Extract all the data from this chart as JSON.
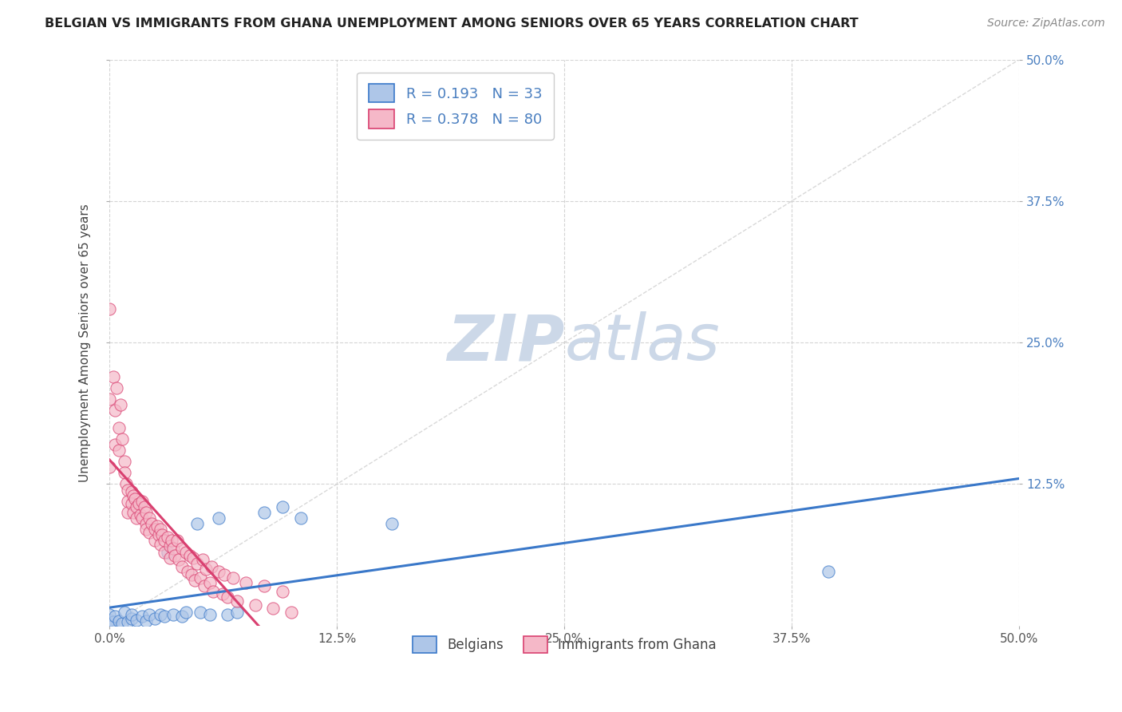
{
  "title": "BELGIAN VS IMMIGRANTS FROM GHANA UNEMPLOYMENT AMONG SENIORS OVER 65 YEARS CORRELATION CHART",
  "source": "Source: ZipAtlas.com",
  "ylabel": "Unemployment Among Seniors over 65 years",
  "xlim": [
    0.0,
    0.5
  ],
  "ylim": [
    0.0,
    0.5
  ],
  "xtick_vals": [
    0.0,
    0.125,
    0.25,
    0.375,
    0.5
  ],
  "ytick_vals": [
    0.125,
    0.25,
    0.375,
    0.5
  ],
  "legend_bottom_labels": [
    "Belgians",
    "Immigrants from Ghana"
  ],
  "R_belgian": 0.193,
  "N_belgian": 33,
  "R_ghana": 0.378,
  "N_ghana": 80,
  "belgian_color": "#aec6e8",
  "ghana_color": "#f5b8c8",
  "belgian_line_color": "#3a78c9",
  "ghana_line_color": "#d94070",
  "diagonal_color": "#c8c8c8",
  "watermark_zip": "ZIP",
  "watermark_atlas": "atlas",
  "watermark_color": "#ccd8e8",
  "background_color": "#ffffff",
  "right_axis_color": "#4a7fc0",
  "belgian_scatter_x": [
    0.0,
    0.0,
    0.0,
    0.002,
    0.003,
    0.005,
    0.007,
    0.008,
    0.01,
    0.012,
    0.012,
    0.015,
    0.018,
    0.02,
    0.022,
    0.025,
    0.028,
    0.03,
    0.032,
    0.035,
    0.04,
    0.042,
    0.048,
    0.05,
    0.055,
    0.06,
    0.065,
    0.07,
    0.085,
    0.095,
    0.105,
    0.155,
    0.395
  ],
  "belgian_scatter_y": [
    0.002,
    0.005,
    0.01,
    0.003,
    0.008,
    0.004,
    0.002,
    0.012,
    0.003,
    0.006,
    0.01,
    0.005,
    0.008,
    0.004,
    0.01,
    0.006,
    0.01,
    0.008,
    0.065,
    0.01,
    0.008,
    0.012,
    0.09,
    0.012,
    0.01,
    0.095,
    0.01,
    0.012,
    0.1,
    0.105,
    0.095,
    0.09,
    0.048
  ],
  "ghana_scatter_x": [
    0.0,
    0.0,
    0.0,
    0.002,
    0.003,
    0.003,
    0.004,
    0.005,
    0.005,
    0.006,
    0.007,
    0.008,
    0.008,
    0.009,
    0.01,
    0.01,
    0.01,
    0.012,
    0.012,
    0.013,
    0.013,
    0.014,
    0.015,
    0.015,
    0.016,
    0.017,
    0.018,
    0.018,
    0.019,
    0.02,
    0.02,
    0.02,
    0.022,
    0.022,
    0.023,
    0.025,
    0.025,
    0.026,
    0.027,
    0.028,
    0.028,
    0.029,
    0.03,
    0.03,
    0.032,
    0.033,
    0.033,
    0.034,
    0.035,
    0.036,
    0.037,
    0.038,
    0.04,
    0.04,
    0.042,
    0.043,
    0.044,
    0.045,
    0.046,
    0.047,
    0.048,
    0.05,
    0.051,
    0.052,
    0.053,
    0.055,
    0.056,
    0.057,
    0.06,
    0.062,
    0.063,
    0.065,
    0.068,
    0.07,
    0.075,
    0.08,
    0.085,
    0.09,
    0.095,
    0.1
  ],
  "ghana_scatter_y": [
    0.28,
    0.2,
    0.14,
    0.22,
    0.19,
    0.16,
    0.21,
    0.175,
    0.155,
    0.195,
    0.165,
    0.145,
    0.135,
    0.125,
    0.12,
    0.11,
    0.1,
    0.118,
    0.108,
    0.115,
    0.1,
    0.112,
    0.105,
    0.095,
    0.108,
    0.098,
    0.11,
    0.095,
    0.105,
    0.09,
    0.1,
    0.085,
    0.095,
    0.082,
    0.09,
    0.085,
    0.075,
    0.088,
    0.08,
    0.085,
    0.072,
    0.08,
    0.075,
    0.065,
    0.078,
    0.07,
    0.06,
    0.075,
    0.068,
    0.062,
    0.075,
    0.058,
    0.068,
    0.052,
    0.065,
    0.048,
    0.062,
    0.045,
    0.06,
    0.04,
    0.055,
    0.042,
    0.058,
    0.035,
    0.05,
    0.038,
    0.052,
    0.03,
    0.048,
    0.028,
    0.045,
    0.025,
    0.042,
    0.022,
    0.038,
    0.018,
    0.035,
    0.015,
    0.03,
    0.012
  ]
}
